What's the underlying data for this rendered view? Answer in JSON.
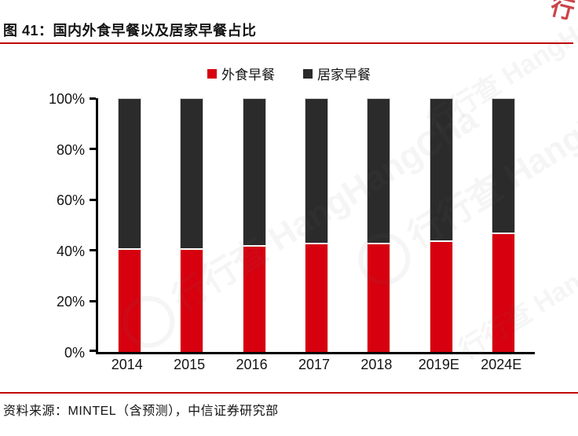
{
  "header": {
    "title": "图 41：国内外食早餐以及居家早餐占比"
  },
  "chart_data": {
    "type": "bar",
    "stacked": true,
    "unit": "percent",
    "title": "国内外食早餐以及居家早餐占比",
    "categories": [
      "2014",
      "2015",
      "2016",
      "2017",
      "2018",
      "2019E",
      "2024E"
    ],
    "series": [
      {
        "name": "外食早餐",
        "color": "#D7000F",
        "values": [
          41,
          41,
          42,
          43,
          43,
          44,
          47
        ]
      },
      {
        "name": "居家早餐",
        "color": "#2B2B2B",
        "values": [
          59,
          59,
          58,
          57,
          57,
          56,
          53
        ]
      }
    ],
    "xlabel": "",
    "ylabel": "",
    "ylim": [
      0,
      100
    ],
    "y_ticks": [
      "0%",
      "20%",
      "40%",
      "60%",
      "80%",
      "100%"
    ],
    "grid": false,
    "legend_position": "top"
  },
  "footer": {
    "source": "资料来源：MINTEL（含预测），中信证券研究部"
  },
  "watermark": {
    "text": "行行查",
    "subtext": "HangHangCha",
    "corner_glyph": "行"
  },
  "colors": {
    "accent_red": "#C00000",
    "bar_red": "#D7000F",
    "bar_dark": "#2B2B2B",
    "axis": "#000000"
  }
}
